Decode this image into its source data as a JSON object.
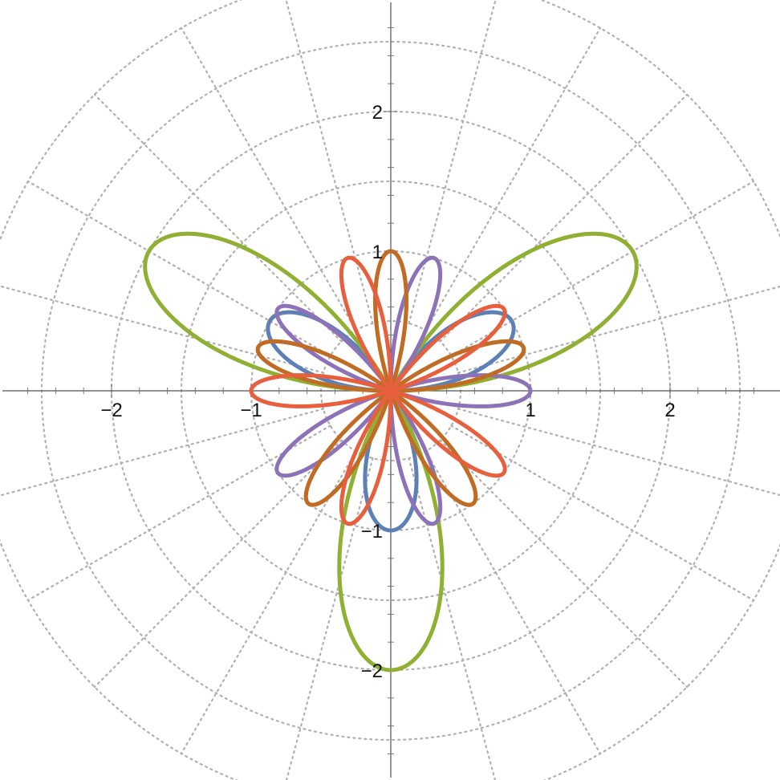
{
  "chart_data": {
    "type": "line",
    "coordinate_system": "polar",
    "title": "",
    "xlabel": "",
    "ylabel": "",
    "xlim": [
      -2.75,
      2.75
    ],
    "ylim": [
      -2.75,
      2.75
    ],
    "x_ticks": [
      -2,
      -1,
      1,
      2
    ],
    "y_ticks": [
      -2,
      -1,
      1,
      2
    ],
    "x_tick_labels": [
      "−2",
      "−1",
      "1",
      "2"
    ],
    "y_tick_labels": [
      "−2",
      "−1",
      "1",
      "2"
    ],
    "grid": "polar dotted",
    "grid_radii": [
      0.5,
      1.0,
      1.5,
      2.0,
      2.5,
      3.0
    ],
    "grid_angle_step_deg": 15,
    "series": [
      {
        "formula": "r = sin(3θ)",
        "amplitude": 1,
        "petals": 3,
        "angle_offset_deg": 0,
        "color": "#5e81b5",
        "draw_order": 0
      },
      {
        "formula": "r = 2 sin(3θ)",
        "amplitude": 2,
        "petals": 3,
        "angle_offset_deg": 0,
        "color": "#8fb032",
        "draw_order": 1
      },
      {
        "formula": "r = cos(5θ)",
        "amplitude": 1,
        "petals": 5,
        "angle_offset_deg": 0,
        "color": "#8e72b8",
        "draw_order": 2
      },
      {
        "formula": "r = cos(5θ + π/2)",
        "amplitude": 1,
        "petals": 5,
        "angle_offset_deg": 90,
        "color": "#e19c24",
        "draw_order": 3
      },
      {
        "formula": "r = sin(5θ)",
        "amplitude": 1,
        "petals": 5,
        "angle_offset_deg": 0,
        "color": "#c06c26",
        "draw_order": 4
      },
      {
        "formula": "r = cos(5θ + π/2)",
        "amplitude": 1,
        "petals": 5,
        "angle_offset_deg": 180,
        "color": "#e75f3c",
        "draw_order": 5
      }
    ]
  }
}
